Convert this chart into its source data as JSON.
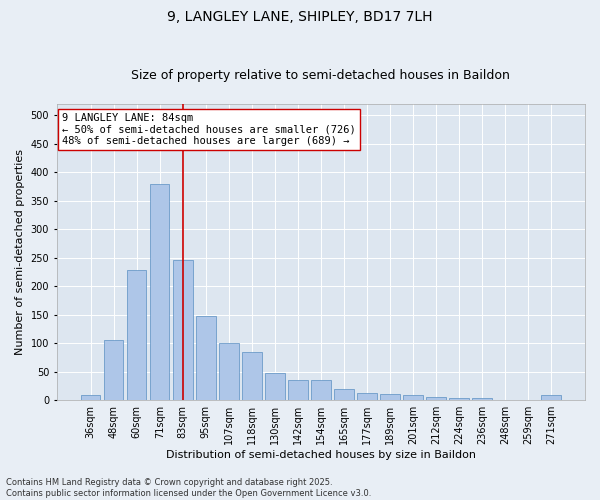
{
  "title": "9, LANGLEY LANE, SHIPLEY, BD17 7LH",
  "subtitle": "Size of property relative to semi-detached houses in Baildon",
  "xlabel": "Distribution of semi-detached houses by size in Baildon",
  "ylabel": "Number of semi-detached properties",
  "categories": [
    "36sqm",
    "48sqm",
    "60sqm",
    "71sqm",
    "83sqm",
    "95sqm",
    "107sqm",
    "118sqm",
    "130sqm",
    "142sqm",
    "154sqm",
    "165sqm",
    "177sqm",
    "189sqm",
    "201sqm",
    "212sqm",
    "224sqm",
    "236sqm",
    "248sqm",
    "259sqm",
    "271sqm"
  ],
  "values": [
    10,
    105,
    228,
    380,
    246,
    148,
    101,
    85,
    47,
    36,
    36,
    20,
    12,
    11,
    10,
    5,
    4,
    4,
    1,
    0,
    9
  ],
  "bar_color": "#aec6e8",
  "bar_edge_color": "#5a8fc2",
  "vline_x": 4.0,
  "vline_color": "#cc0000",
  "annotation_text": "9 LANGLEY LANE: 84sqm\n← 50% of semi-detached houses are smaller (726)\n48% of semi-detached houses are larger (689) →",
  "annotation_box_color": "#ffffff",
  "annotation_box_edge": "#cc0000",
  "background_color": "#e8eef5",
  "plot_bg_color": "#dde6f0",
  "grid_color": "#ffffff",
  "ylim": [
    0,
    520
  ],
  "yticks": [
    0,
    50,
    100,
    150,
    200,
    250,
    300,
    350,
    400,
    450,
    500
  ],
  "footnote": "Contains HM Land Registry data © Crown copyright and database right 2025.\nContains public sector information licensed under the Open Government Licence v3.0.",
  "title_fontsize": 10,
  "subtitle_fontsize": 9,
  "axis_label_fontsize": 8,
  "tick_fontsize": 7,
  "annotation_fontsize": 7.5,
  "footnote_fontsize": 6
}
